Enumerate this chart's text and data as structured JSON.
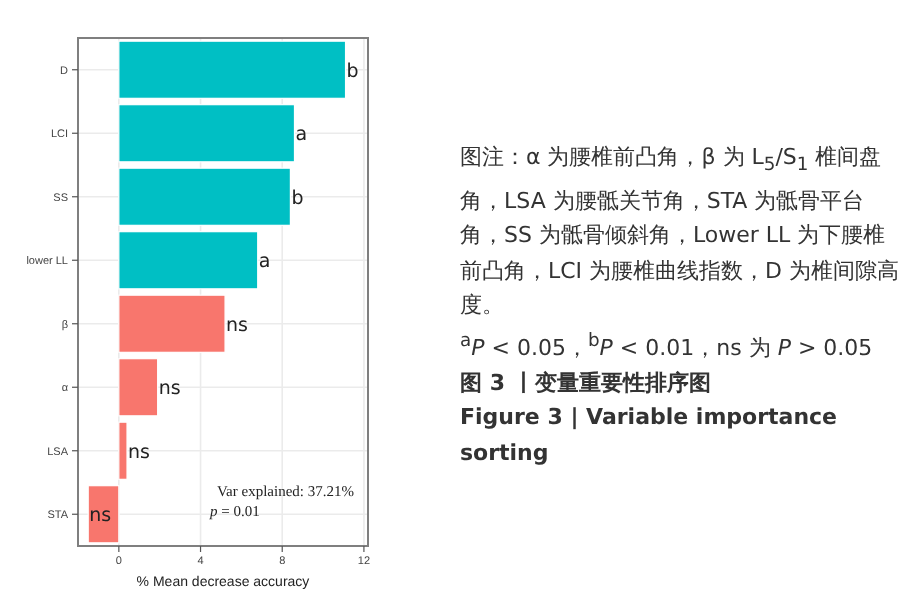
{
  "chart_data": {
    "type": "bar",
    "orientation": "horizontal",
    "title": "图 3 丨变量重要性排序图",
    "subtitle": "Figure 3 | Variable importance sorting",
    "xlabel": "% Mean decrease accuracy",
    "categories": [
      "D",
      "LCI",
      "SS",
      "lower LL",
      "β",
      "α",
      "LSA",
      "STA"
    ],
    "values": [
      11.1,
      8.6,
      8.4,
      6.8,
      5.2,
      1.9,
      0.4,
      -1.5
    ],
    "colors": [
      "#00bfc4",
      "#00bfc4",
      "#00bfc4",
      "#00bfc4",
      "#f8766d",
      "#f8766d",
      "#f8766d",
      "#f8766d"
    ],
    "value_labels": [
      "b",
      "a",
      "b",
      "a",
      "ns",
      "ns",
      "ns",
      "ns"
    ],
    "xlim": [
      -2,
      12.2
    ],
    "xticks": [
      0,
      4,
      8,
      12
    ],
    "grid": true,
    "annotations": [
      "Var explained: 37.21%",
      "*p* = 0.01",
      "图注：α 为腰椎前凸角，β 为 L$_{5}$/S$_{1}$ 椎间盘角，LSA 为腰骶关节角，STA 为骶骨平台角，SS 为骶骨倾斜角，Lower LL 为下腰椎前凸角，LCI 为腰椎曲线指数，D 为椎间隙高度。",
      "$^{a}$*P* < 0.05，$^{b}$*P* < 0.01，ns 为 *P* > 0.05"
    ]
  }
}
